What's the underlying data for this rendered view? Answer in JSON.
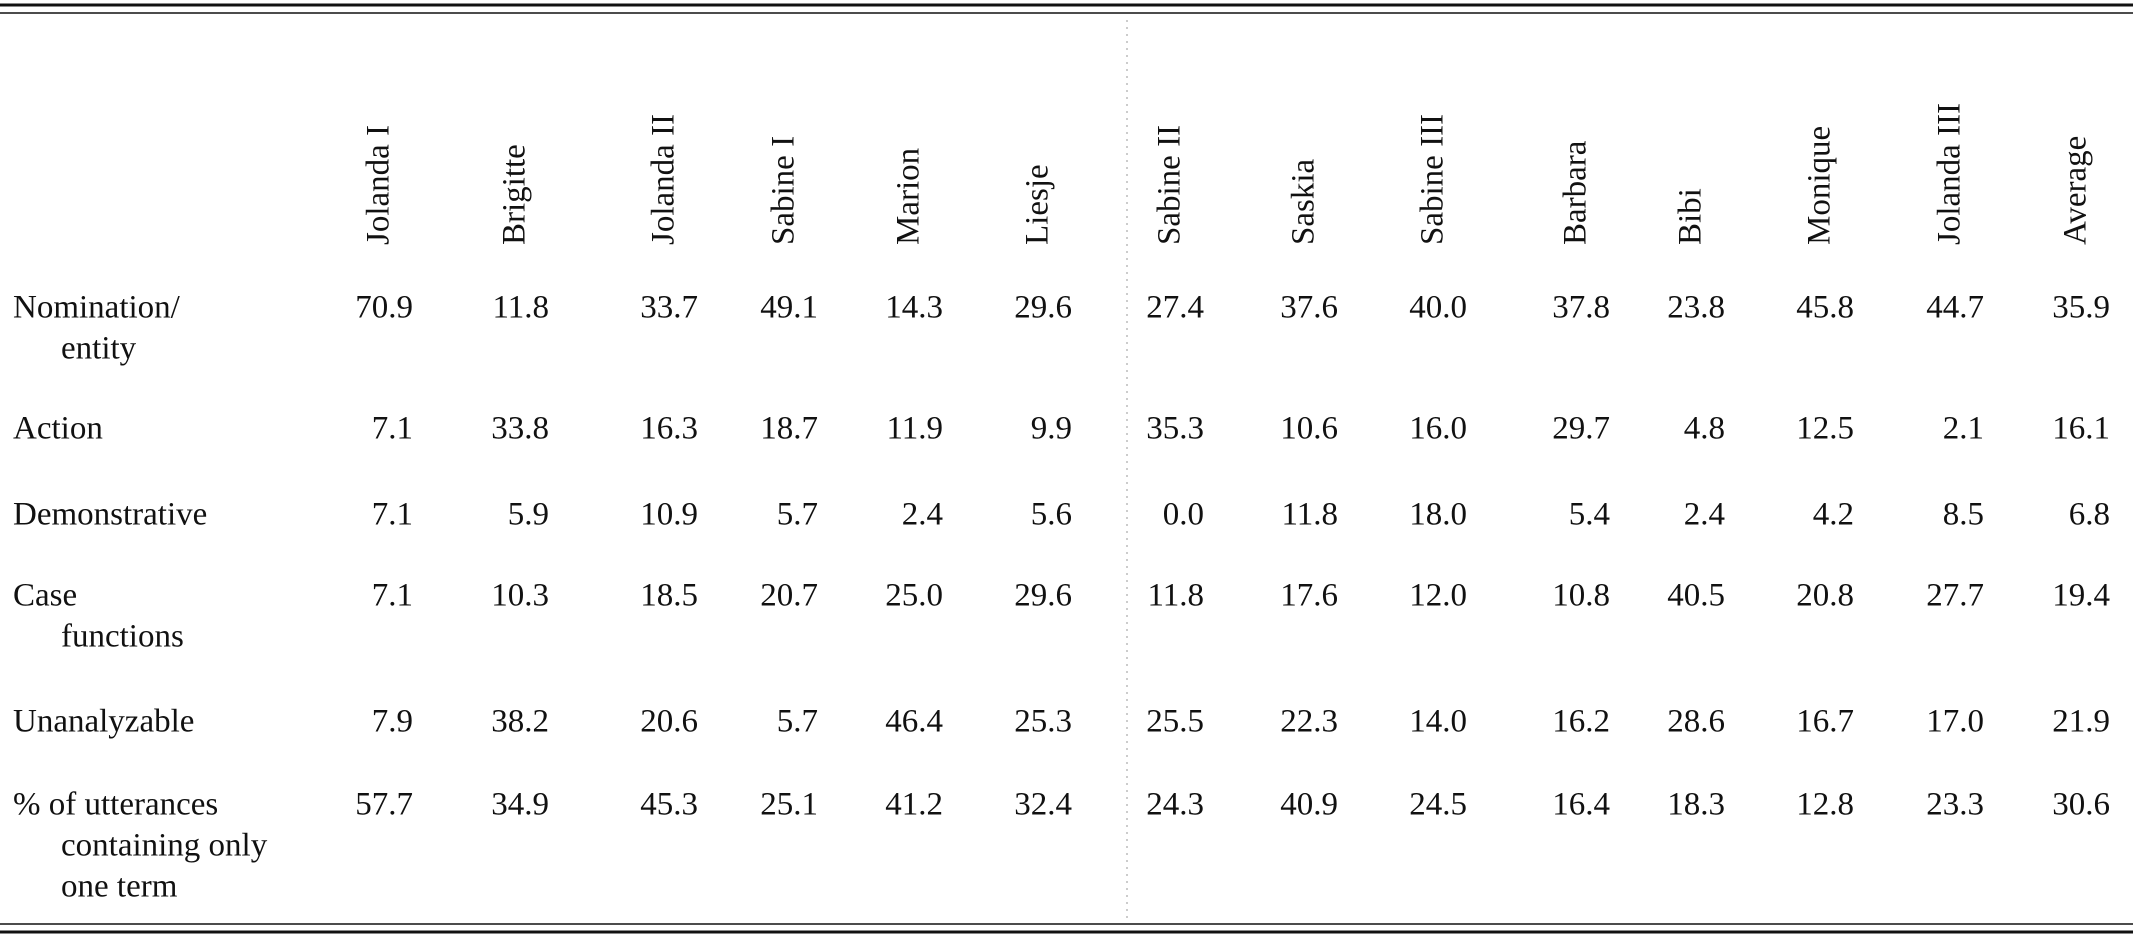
{
  "table": {
    "columns": [
      "Jolanda I",
      "Brigitte",
      "Jolanda II",
      "Sabine I",
      "Marion",
      "Liesje",
      "Sabine II",
      "Saskia",
      "Sabine III",
      "Barbara",
      "Bibi",
      "Monique",
      "Jolanda III",
      "Average"
    ],
    "rows": [
      {
        "label": [
          "Nomination/",
          "entity"
        ],
        "cells": [
          "70.9",
          "11.8",
          "33.7",
          "49.1",
          "14.3",
          "29.6",
          "27.4",
          "37.6",
          "40.0",
          "37.8",
          "23.8",
          "45.8",
          "44.7",
          "35.9"
        ]
      },
      {
        "label": [
          "Action"
        ],
        "cells": [
          "7.1",
          "33.8",
          "16.3",
          "18.7",
          "11.9",
          "9.9",
          "35.3",
          "10.6",
          "16.0",
          "29.7",
          "4.8",
          "12.5",
          "2.1",
          "16.1"
        ]
      },
      {
        "label": [
          "Demonstrative"
        ],
        "cells": [
          "7.1",
          "5.9",
          "10.9",
          "5.7",
          "2.4",
          "5.6",
          "0.0",
          "11.8",
          "18.0",
          "5.4",
          "2.4",
          "4.2",
          "8.5",
          "6.8"
        ]
      },
      {
        "label": [
          "Case",
          "functions"
        ],
        "cells": [
          "7.1",
          "10.3",
          "18.5",
          "20.7",
          "25.0",
          "29.6",
          "11.8",
          "17.6",
          "12.0",
          "10.8",
          "40.5",
          "20.8",
          "27.7",
          "19.4"
        ]
      },
      {
        "label": [
          "Unanalyzable"
        ],
        "cells": [
          "7.9",
          "38.2",
          "20.6",
          "5.7",
          "46.4",
          "25.3",
          "25.5",
          "22.3",
          "14.0",
          "16.2",
          "28.6",
          "16.7",
          "17.0",
          "21.9"
        ]
      },
      {
        "label": [
          "% of utterances",
          "containing only",
          "one term"
        ],
        "cells": [
          "57.7",
          "34.9",
          "45.3",
          "25.1",
          "41.2",
          "32.4",
          "24.3",
          "40.9",
          "24.5",
          "16.4",
          "18.3",
          "12.8",
          "23.3",
          "30.6"
        ]
      }
    ]
  }
}
